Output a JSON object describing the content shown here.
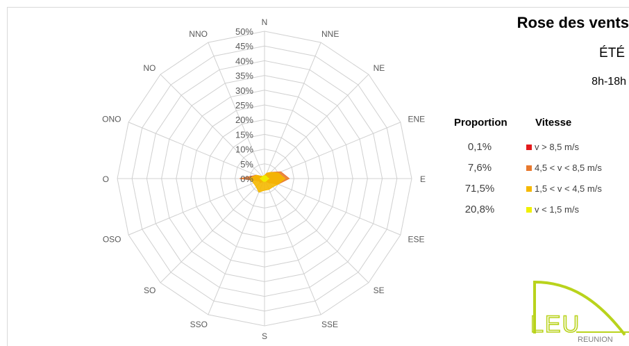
{
  "header": {
    "title": "Rose des vents",
    "season": "ÉTÉ",
    "hours": "8h-18h"
  },
  "legend": {
    "proportion_header": "Proportion",
    "speed_header": "Vitesse",
    "items": [
      {
        "proportion": "0,1%",
        "label": "v > 8,5 m/s",
        "color": "#e31a1c"
      },
      {
        "proportion": "7,6%",
        "label": "4,5 < v < 8,5 m/s",
        "color": "#e8792e"
      },
      {
        "proportion": "71,5%",
        "label": "1,5 < v < 4,5 m/s",
        "color": "#f5b800"
      },
      {
        "proportion": "20,8%",
        "label": "v < 1,5 m/s",
        "color": "#f0f000"
      }
    ]
  },
  "logo": {
    "text": "LEU",
    "subtext": "REUNION",
    "color": "#b9d31c"
  },
  "chart_data": {
    "type": "radar",
    "directions": [
      "N",
      "NNE",
      "NE",
      "ENE",
      "E",
      "ESE",
      "SE",
      "SSE",
      "S",
      "SSO",
      "SO",
      "OSO",
      "O",
      "ONO",
      "NO",
      "NNO"
    ],
    "radial_ticks": [
      "0%",
      "5%",
      "10%",
      "15%",
      "20%",
      "25%",
      "30%",
      "35%",
      "40%",
      "45%",
      "50%"
    ],
    "rmax": 50,
    "grid": true,
    "series": [
      {
        "name": "v > 8,5 m/s",
        "color": "#e31a1c",
        "values": [
          0,
          0,
          0,
          0,
          0.1,
          0,
          0,
          0,
          0,
          0,
          0,
          0,
          0,
          0,
          0,
          0
        ]
      },
      {
        "name": "4,5 < v < 8,5 m/s",
        "color": "#e8792e",
        "values": [
          1,
          2,
          3,
          6,
          8.4,
          5,
          2,
          1,
          1,
          1,
          2,
          2,
          8.5,
          3,
          1,
          1
        ]
      },
      {
        "name": "1,5 < v < 4,5 m/s",
        "color": "#f5b800",
        "values": [
          1,
          2,
          3,
          5,
          7,
          5,
          4,
          4,
          4,
          5,
          4,
          4,
          5,
          3,
          1,
          1
        ]
      },
      {
        "name": "v < 1,5 m/s",
        "color": "#f0f000",
        "values": [
          1,
          1,
          1,
          1,
          1.5,
          1,
          1,
          1,
          1,
          1,
          1,
          1,
          1.5,
          1,
          1,
          1
        ]
      }
    ]
  }
}
